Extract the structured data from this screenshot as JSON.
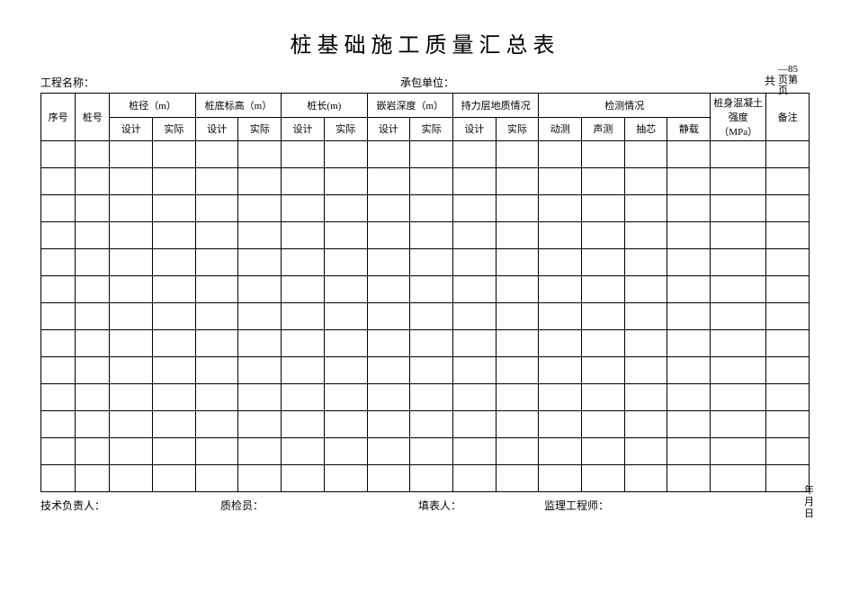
{
  "title": "桩基础施工质量汇总表",
  "info": {
    "project_label": "工程名称：",
    "contractor_label": "承包单位：",
    "gong": "共",
    "page_corner": "—85\n页第\n页"
  },
  "headers": {
    "row1": {
      "seq": "序号",
      "pile_no": "桩号",
      "diameter": "桩径（m）",
      "bottom_elev": "桩底标高（m）",
      "length": "桩长(m)",
      "rock_depth": "嵌岩深度（m）",
      "bearing": "持力层地质情况",
      "inspection": "检测情况",
      "concrete": "桩身混凝土强度（MPa）",
      "remark": "备注"
    },
    "row2": {
      "design": "设计",
      "actual": "实际",
      "dyn": "动测",
      "sonic": "声测",
      "core": "抽芯",
      "static": "静载"
    }
  },
  "footer": {
    "tech_lead": "技术负责人：",
    "inspector": "质检员：",
    "preparer": "填表人：",
    "supervisor": "监理工程师：",
    "date": "年\n月\n日"
  },
  "layout": {
    "empty_rows": 13,
    "columns": 18,
    "border_color": "#000000",
    "background_color": "#ffffff",
    "title_fontsize": 24,
    "header_fontsize": 11,
    "body_fontsize": 12
  }
}
